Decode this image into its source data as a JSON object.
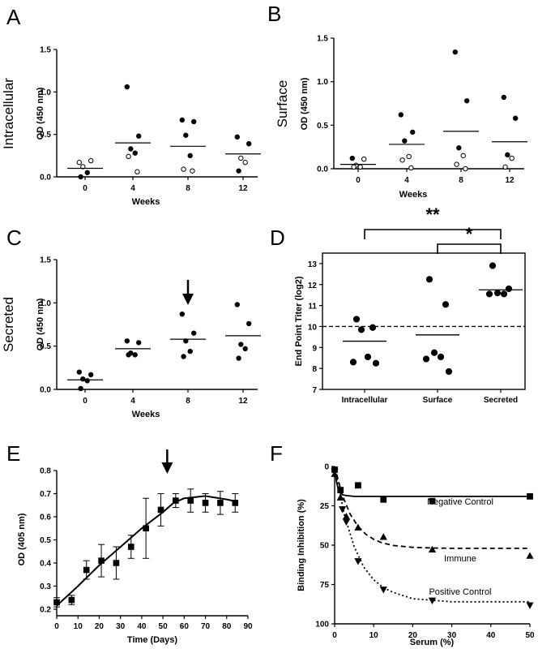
{
  "chart_data": [
    {
      "panel": "A",
      "type": "scatter",
      "ylabel_big": "Intracellular",
      "ylabel": "OD (450 nm)",
      "xlabel": "Weeks",
      "categories": [
        "0",
        "4",
        "8",
        "12"
      ],
      "yticks": [
        "0.0",
        "0.5",
        "1.0",
        "1.5"
      ],
      "ylim": [
        0,
        1.5
      ],
      "means": [
        0.1,
        0.4,
        0.36,
        0.27
      ],
      "points": [
        {
          "x": 0,
          "y": 0.17,
          "filled": false
        },
        {
          "x": 0,
          "y": 0.19,
          "filled": false
        },
        {
          "x": 0,
          "y": 0.12,
          "filled": false
        },
        {
          "x": 0,
          "y": 0.05,
          "filled": true
        },
        {
          "x": 0,
          "y": 0.0,
          "filled": true
        },
        {
          "x": 1,
          "y": 1.06,
          "filled": true
        },
        {
          "x": 1,
          "y": 0.48,
          "filled": true
        },
        {
          "x": 1,
          "y": 0.33,
          "filled": true
        },
        {
          "x": 1,
          "y": 0.28,
          "filled": true
        },
        {
          "x": 1,
          "y": 0.24,
          "filled": false
        },
        {
          "x": 1,
          "y": 0.06,
          "filled": false
        },
        {
          "x": 2,
          "y": 0.67,
          "filled": true
        },
        {
          "x": 2,
          "y": 0.65,
          "filled": true
        },
        {
          "x": 2,
          "y": 0.49,
          "filled": true
        },
        {
          "x": 2,
          "y": 0.25,
          "filled": true
        },
        {
          "x": 2,
          "y": 0.09,
          "filled": false
        },
        {
          "x": 2,
          "y": 0.07,
          "filled": false
        },
        {
          "x": 3,
          "y": 0.47,
          "filled": true
        },
        {
          "x": 3,
          "y": 0.39,
          "filled": true
        },
        {
          "x": 3,
          "y": 0.22,
          "filled": false
        },
        {
          "x": 3,
          "y": 0.17,
          "filled": false
        },
        {
          "x": 3,
          "y": 0.07,
          "filled": true
        }
      ]
    },
    {
      "panel": "B",
      "type": "scatter",
      "ylabel_big": "Surface",
      "ylabel": "OD (450 nm)",
      "xlabel": "Weeks",
      "categories": [
        "0",
        "4",
        "8",
        "12"
      ],
      "yticks": [
        "0.0",
        "0.5",
        "1.0",
        "1.5"
      ],
      "ylim": [
        0,
        1.5
      ],
      "means": [
        0.05,
        0.28,
        0.43,
        0.31
      ],
      "points": [
        {
          "x": 0,
          "y": 0.12,
          "filled": true
        },
        {
          "x": 0,
          "y": 0.11,
          "filled": false
        },
        {
          "x": 0,
          "y": 0.04,
          "filled": false
        },
        {
          "x": 0,
          "y": 0.02,
          "filled": false
        },
        {
          "x": 0,
          "y": 0.02,
          "filled": false
        },
        {
          "x": 1,
          "y": 0.62,
          "filled": true
        },
        {
          "x": 1,
          "y": 0.42,
          "filled": true
        },
        {
          "x": 1,
          "y": 0.32,
          "filled": true
        },
        {
          "x": 1,
          "y": 0.14,
          "filled": false
        },
        {
          "x": 1,
          "y": 0.1,
          "filled": false
        },
        {
          "x": 1,
          "y": 0.01,
          "filled": false
        },
        {
          "x": 2,
          "y": 1.34,
          "filled": true
        },
        {
          "x": 2,
          "y": 0.78,
          "filled": true
        },
        {
          "x": 2,
          "y": 0.24,
          "filled": true
        },
        {
          "x": 2,
          "y": 0.15,
          "filled": false
        },
        {
          "x": 2,
          "y": 0.05,
          "filled": false
        },
        {
          "x": 2,
          "y": 0.0,
          "filled": false
        },
        {
          "x": 3,
          "y": 0.82,
          "filled": true
        },
        {
          "x": 3,
          "y": 0.58,
          "filled": true
        },
        {
          "x": 3,
          "y": 0.16,
          "filled": true
        },
        {
          "x": 3,
          "y": 0.12,
          "filled": false
        },
        {
          "x": 3,
          "y": 0.02,
          "filled": false
        }
      ]
    },
    {
      "panel": "C",
      "type": "scatter",
      "ylabel_big": "Secreted",
      "ylabel": "OD (450 nm)",
      "xlabel": "Weeks",
      "categories": [
        "0",
        "4",
        "8",
        "12"
      ],
      "yticks": [
        "0.0",
        "0.5",
        "1.0",
        "1.5"
      ],
      "ylim": [
        0,
        1.5
      ],
      "means": [
        0.11,
        0.47,
        0.58,
        0.62
      ],
      "arrow_at": 2,
      "points": [
        {
          "x": 0,
          "y": 0.2,
          "filled": true
        },
        {
          "x": 0,
          "y": 0.17,
          "filled": true
        },
        {
          "x": 0,
          "y": 0.12,
          "filled": true
        },
        {
          "x": 0,
          "y": 0.1,
          "filled": true
        },
        {
          "x": 0,
          "y": 0.01,
          "filled": true
        },
        {
          "x": 1,
          "y": 0.56,
          "filled": true
        },
        {
          "x": 1,
          "y": 0.54,
          "filled": true
        },
        {
          "x": 1,
          "y": 0.42,
          "filled": true
        },
        {
          "x": 1,
          "y": 0.4,
          "filled": true
        },
        {
          "x": 1,
          "y": 0.4,
          "filled": true
        },
        {
          "x": 2,
          "y": 0.87,
          "filled": true
        },
        {
          "x": 2,
          "y": 0.65,
          "filled": true
        },
        {
          "x": 2,
          "y": 0.56,
          "filled": true
        },
        {
          "x": 2,
          "y": 0.44,
          "filled": true
        },
        {
          "x": 2,
          "y": 0.38,
          "filled": true
        },
        {
          "x": 3,
          "y": 0.98,
          "filled": true
        },
        {
          "x": 3,
          "y": 0.76,
          "filled": true
        },
        {
          "x": 3,
          "y": 0.52,
          "filled": true
        },
        {
          "x": 3,
          "y": 0.47,
          "filled": true
        },
        {
          "x": 3,
          "y": 0.36,
          "filled": true
        }
      ]
    },
    {
      "panel": "D",
      "type": "scatter",
      "ylabel": "End Point Titer (log2)",
      "categories": [
        "Intracellular",
        "Surface",
        "Secreted"
      ],
      "yticks": [
        "7",
        "8",
        "9",
        "10",
        "11",
        "12",
        "13"
      ],
      "ylim": [
        7,
        13.5
      ],
      "cutoff": 10,
      "means": [
        9.3,
        9.6,
        11.75
      ],
      "significance": [
        {
          "from": 0,
          "to": 2,
          "label": "**"
        },
        {
          "from": 1,
          "to": 2,
          "label": "*"
        }
      ],
      "points": [
        {
          "x": 0,
          "y": 10.35,
          "filled": true
        },
        {
          "x": 0,
          "y": 9.95,
          "filled": true
        },
        {
          "x": 0,
          "y": 9.85,
          "filled": true
        },
        {
          "x": 0,
          "y": 8.55,
          "filled": true
        },
        {
          "x": 0,
          "y": 8.3,
          "filled": true
        },
        {
          "x": 0,
          "y": 8.25,
          "filled": true
        },
        {
          "x": 1,
          "y": 12.25,
          "filled": true
        },
        {
          "x": 1,
          "y": 11.05,
          "filled": true
        },
        {
          "x": 1,
          "y": 8.75,
          "filled": true
        },
        {
          "x": 1,
          "y": 8.55,
          "filled": true
        },
        {
          "x": 1,
          "y": 8.45,
          "filled": true
        },
        {
          "x": 1,
          "y": 7.85,
          "filled": true
        },
        {
          "x": 2,
          "y": 12.9,
          "filled": true
        },
        {
          "x": 2,
          "y": 11.8,
          "filled": true
        },
        {
          "x": 2,
          "y": 11.6,
          "filled": true
        },
        {
          "x": 2,
          "y": 11.55,
          "filled": true
        },
        {
          "x": 2,
          "y": 11.55,
          "filled": true
        }
      ]
    },
    {
      "panel": "E",
      "type": "line",
      "ylabel": "OD (405 nm)",
      "xlabel": "Time (Days)",
      "xticks": [
        "0",
        "10",
        "20",
        "30",
        "40",
        "50",
        "60",
        "70",
        "80",
        "90"
      ],
      "yticks": [
        "0.2",
        "0.3",
        "0.4",
        "0.5",
        "0.6",
        "0.7",
        "0.8"
      ],
      "xlim": [
        0,
        90
      ],
      "ylim": [
        0.2,
        0.8
      ],
      "arrow_at": 52,
      "x": [
        0,
        7,
        14,
        21,
        28,
        35,
        42,
        49,
        56,
        63,
        70,
        77,
        84
      ],
      "y": [
        0.23,
        0.24,
        0.37,
        0.41,
        0.4,
        0.47,
        0.55,
        0.63,
        0.67,
        0.67,
        0.66,
        0.66,
        0.66
      ],
      "err": [
        0.02,
        0.02,
        0.04,
        0.07,
        0.07,
        0.05,
        0.13,
        0.07,
        0.03,
        0.05,
        0.04,
        0.05,
        0.04
      ],
      "fit_x": [
        0,
        10,
        20,
        30,
        40,
        50,
        55,
        60,
        70,
        80,
        85
      ],
      "fit_y": [
        0.215,
        0.3,
        0.39,
        0.47,
        0.55,
        0.62,
        0.66,
        0.68,
        0.69,
        0.675,
        0.665
      ]
    },
    {
      "panel": "F",
      "type": "scatter",
      "ylabel": "Binding Inhibition (%)",
      "xlabel": "Serum (%)",
      "xticks": [
        "0",
        "10",
        "20",
        "30",
        "40",
        "50"
      ],
      "yticks": [
        "0",
        "25",
        "50",
        "75",
        "100"
      ],
      "xlim": [
        0,
        50
      ],
      "ylim": [
        0,
        100
      ],
      "series": [
        {
          "name": "Negative Control",
          "marker": "square",
          "dash": "solid",
          "x": [
            0,
            1.5,
            6,
            12.5,
            25,
            50
          ],
          "y": [
            2,
            15,
            12,
            21,
            22,
            19
          ],
          "fit_x": [
            0,
            0.5,
            1,
            1.5,
            2,
            3,
            5,
            10,
            20,
            30,
            40,
            50
          ],
          "fit_y": [
            0,
            10,
            15,
            17,
            18,
            18.5,
            19,
            19,
            19,
            19,
            19,
            19
          ]
        },
        {
          "name": "Immune",
          "marker": "triangle",
          "dash": "dashed",
          "x": [
            0,
            1.5,
            3,
            6,
            12.5,
            25,
            50
          ],
          "y": [
            5,
            20,
            32,
            39,
            45,
            53,
            57
          ],
          "fit_x": [
            0,
            2,
            4,
            6,
            8,
            10,
            12,
            15,
            20,
            25,
            30,
            40,
            50
          ],
          "fit_y": [
            0,
            18.5,
            30.4,
            38.1,
            43.1,
            46.3,
            48.4,
            50.2,
            51.4,
            51.8,
            52,
            52,
            52
          ]
        },
        {
          "name": "Positive Control",
          "marker": "triangle-down",
          "dash": "dotted",
          "x": [
            0,
            2,
            3,
            6,
            12.5,
            25,
            50
          ],
          "y": [
            3,
            27,
            35,
            60,
            78,
            85,
            88
          ],
          "fit_x": [
            0,
            2.5,
            5,
            7.5,
            10,
            12.5,
            15,
            20,
            25,
            30,
            40,
            50
          ],
          "fit_y": [
            0,
            31,
            51,
            64,
            72,
            77,
            80,
            84,
            85,
            86,
            86,
            86
          ]
        }
      ]
    }
  ]
}
